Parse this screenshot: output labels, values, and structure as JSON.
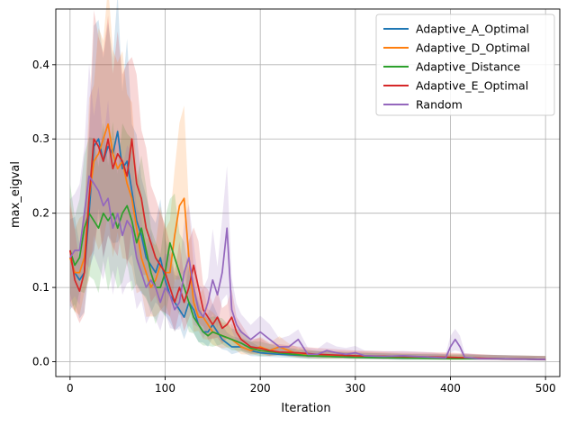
{
  "chart_data": {
    "type": "line",
    "title": "",
    "xlabel": "Iteration",
    "ylabel": "max_eigval",
    "xlim": [
      -15,
      515
    ],
    "ylim": [
      -0.02,
      0.475
    ],
    "x_ticks": [
      0,
      100,
      200,
      300,
      400,
      500
    ],
    "y_ticks": [
      0.0,
      0.1,
      0.2,
      0.3,
      0.4
    ],
    "x_tick_labels": [
      "0",
      "100",
      "200",
      "300",
      "400",
      "500"
    ],
    "y_tick_labels": [
      "0.0",
      "0.1",
      "0.2",
      "0.3",
      "0.4"
    ],
    "grid": true,
    "legend_position": "top-right",
    "series": [
      {
        "name": "Adaptive_A_Optimal",
        "color": "#1f77b4",
        "points": [
          [
            0,
            0.14
          ],
          [
            5,
            0.12
          ],
          [
            10,
            0.11
          ],
          [
            15,
            0.12
          ],
          [
            20,
            0.2
          ],
          [
            25,
            0.29
          ],
          [
            30,
            0.3
          ],
          [
            35,
            0.27
          ],
          [
            40,
            0.29
          ],
          [
            45,
            0.28
          ],
          [
            50,
            0.31
          ],
          [
            55,
            0.26
          ],
          [
            60,
            0.27
          ],
          [
            65,
            0.23
          ],
          [
            70,
            0.19
          ],
          [
            75,
            0.17
          ],
          [
            80,
            0.14
          ],
          [
            85,
            0.13
          ],
          [
            90,
            0.12
          ],
          [
            95,
            0.14
          ],
          [
            100,
            0.11
          ],
          [
            105,
            0.09
          ],
          [
            110,
            0.08
          ],
          [
            115,
            0.07
          ],
          [
            120,
            0.06
          ],
          [
            125,
            0.08
          ],
          [
            130,
            0.07
          ],
          [
            135,
            0.05
          ],
          [
            140,
            0.04
          ],
          [
            145,
            0.04
          ],
          [
            150,
            0.05
          ],
          [
            155,
            0.04
          ],
          [
            160,
            0.03
          ],
          [
            165,
            0.025
          ],
          [
            170,
            0.02
          ],
          [
            180,
            0.02
          ],
          [
            190,
            0.015
          ],
          [
            200,
            0.012
          ],
          [
            220,
            0.01
          ],
          [
            250,
            0.008
          ],
          [
            300,
            0.006
          ],
          [
            350,
            0.005
          ],
          [
            400,
            0.005
          ],
          [
            450,
            0.004
          ],
          [
            500,
            0.003
          ]
        ]
      },
      {
        "name": "Adaptive_D_Optimal",
        "color": "#ff7f0e",
        "points": [
          [
            0,
            0.14
          ],
          [
            5,
            0.12
          ],
          [
            10,
            0.12
          ],
          [
            15,
            0.14
          ],
          [
            20,
            0.22
          ],
          [
            25,
            0.27
          ],
          [
            30,
            0.28
          ],
          [
            35,
            0.3
          ],
          [
            40,
            0.32
          ],
          [
            45,
            0.28
          ],
          [
            50,
            0.26
          ],
          [
            55,
            0.27
          ],
          [
            60,
            0.24
          ],
          [
            65,
            0.22
          ],
          [
            70,
            0.18
          ],
          [
            75,
            0.14
          ],
          [
            80,
            0.12
          ],
          [
            85,
            0.1
          ],
          [
            90,
            0.11
          ],
          [
            95,
            0.13
          ],
          [
            100,
            0.12
          ],
          [
            105,
            0.12
          ],
          [
            110,
            0.17
          ],
          [
            115,
            0.21
          ],
          [
            120,
            0.22
          ],
          [
            125,
            0.14
          ],
          [
            130,
            0.08
          ],
          [
            135,
            0.06
          ],
          [
            140,
            0.06
          ],
          [
            145,
            0.05
          ],
          [
            150,
            0.04
          ],
          [
            160,
            0.035
          ],
          [
            170,
            0.03
          ],
          [
            180,
            0.02
          ],
          [
            190,
            0.015
          ],
          [
            200,
            0.02
          ],
          [
            210,
            0.015
          ],
          [
            220,
            0.02
          ],
          [
            230,
            0.015
          ],
          [
            240,
            0.01
          ],
          [
            260,
            0.008
          ],
          [
            300,
            0.007
          ],
          [
            350,
            0.006
          ],
          [
            400,
            0.005
          ],
          [
            450,
            0.004
          ],
          [
            500,
            0.003
          ]
        ]
      },
      {
        "name": "Adaptive_Distance",
        "color": "#2ca02c",
        "points": [
          [
            0,
            0.15
          ],
          [
            5,
            0.13
          ],
          [
            10,
            0.14
          ],
          [
            15,
            0.18
          ],
          [
            20,
            0.2
          ],
          [
            25,
            0.19
          ],
          [
            30,
            0.18
          ],
          [
            35,
            0.2
          ],
          [
            40,
            0.19
          ],
          [
            45,
            0.2
          ],
          [
            50,
            0.18
          ],
          [
            55,
            0.2
          ],
          [
            60,
            0.21
          ],
          [
            65,
            0.19
          ],
          [
            70,
            0.16
          ],
          [
            75,
            0.18
          ],
          [
            80,
            0.15
          ],
          [
            85,
            0.12
          ],
          [
            90,
            0.1
          ],
          [
            95,
            0.1
          ],
          [
            100,
            0.12
          ],
          [
            105,
            0.16
          ],
          [
            110,
            0.14
          ],
          [
            115,
            0.12
          ],
          [
            120,
            0.1
          ],
          [
            125,
            0.08
          ],
          [
            130,
            0.06
          ],
          [
            135,
            0.05
          ],
          [
            140,
            0.04
          ],
          [
            145,
            0.035
          ],
          [
            150,
            0.04
          ],
          [
            160,
            0.035
          ],
          [
            170,
            0.03
          ],
          [
            180,
            0.025
          ],
          [
            190,
            0.018
          ],
          [
            200,
            0.015
          ],
          [
            220,
            0.012
          ],
          [
            250,
            0.008
          ],
          [
            300,
            0.006
          ],
          [
            350,
            0.005
          ],
          [
            400,
            0.004
          ],
          [
            450,
            0.004
          ],
          [
            500,
            0.003
          ]
        ]
      },
      {
        "name": "Adaptive_E_Optimal",
        "color": "#d62728",
        "points": [
          [
            0,
            0.15
          ],
          [
            5,
            0.11
          ],
          [
            10,
            0.095
          ],
          [
            15,
            0.12
          ],
          [
            20,
            0.22
          ],
          [
            25,
            0.3
          ],
          [
            30,
            0.29
          ],
          [
            35,
            0.27
          ],
          [
            40,
            0.3
          ],
          [
            45,
            0.26
          ],
          [
            50,
            0.28
          ],
          [
            55,
            0.27
          ],
          [
            60,
            0.25
          ],
          [
            65,
            0.3
          ],
          [
            70,
            0.24
          ],
          [
            75,
            0.22
          ],
          [
            80,
            0.18
          ],
          [
            85,
            0.16
          ],
          [
            90,
            0.14
          ],
          [
            95,
            0.13
          ],
          [
            100,
            0.12
          ],
          [
            105,
            0.1
          ],
          [
            110,
            0.08
          ],
          [
            115,
            0.1
          ],
          [
            120,
            0.08
          ],
          [
            125,
            0.1
          ],
          [
            130,
            0.13
          ],
          [
            135,
            0.1
          ],
          [
            140,
            0.07
          ],
          [
            145,
            0.06
          ],
          [
            150,
            0.05
          ],
          [
            155,
            0.06
          ],
          [
            160,
            0.045
          ],
          [
            165,
            0.05
          ],
          [
            170,
            0.06
          ],
          [
            175,
            0.04
          ],
          [
            180,
            0.03
          ],
          [
            190,
            0.02
          ],
          [
            200,
            0.018
          ],
          [
            210,
            0.015
          ],
          [
            220,
            0.013
          ],
          [
            240,
            0.012
          ],
          [
            260,
            0.01
          ],
          [
            300,
            0.008
          ],
          [
            350,
            0.007
          ],
          [
            400,
            0.006
          ],
          [
            450,
            0.004
          ],
          [
            500,
            0.003
          ]
        ]
      },
      {
        "name": "Random",
        "color": "#9467bd",
        "points": [
          [
            0,
            0.14
          ],
          [
            5,
            0.15
          ],
          [
            10,
            0.15
          ],
          [
            15,
            0.2
          ],
          [
            20,
            0.25
          ],
          [
            25,
            0.24
          ],
          [
            30,
            0.23
          ],
          [
            35,
            0.21
          ],
          [
            40,
            0.22
          ],
          [
            45,
            0.18
          ],
          [
            50,
            0.2
          ],
          [
            55,
            0.17
          ],
          [
            60,
            0.19
          ],
          [
            65,
            0.18
          ],
          [
            70,
            0.14
          ],
          [
            75,
            0.12
          ],
          [
            80,
            0.1
          ],
          [
            85,
            0.11
          ],
          [
            90,
            0.1
          ],
          [
            95,
            0.08
          ],
          [
            100,
            0.1
          ],
          [
            105,
            0.09
          ],
          [
            110,
            0.07
          ],
          [
            115,
            0.08
          ],
          [
            120,
            0.12
          ],
          [
            125,
            0.14
          ],
          [
            130,
            0.1
          ],
          [
            135,
            0.07
          ],
          [
            140,
            0.06
          ],
          [
            145,
            0.08
          ],
          [
            150,
            0.11
          ],
          [
            155,
            0.09
          ],
          [
            160,
            0.12
          ],
          [
            165,
            0.18
          ],
          [
            170,
            0.07
          ],
          [
            175,
            0.05
          ],
          [
            180,
            0.04
          ],
          [
            190,
            0.03
          ],
          [
            200,
            0.04
          ],
          [
            210,
            0.03
          ],
          [
            220,
            0.02
          ],
          [
            230,
            0.02
          ],
          [
            240,
            0.03
          ],
          [
            250,
            0.01
          ],
          [
            260,
            0.01
          ],
          [
            270,
            0.015
          ],
          [
            280,
            0.012
          ],
          [
            290,
            0.01
          ],
          [
            300,
            0.012
          ],
          [
            310,
            0.008
          ],
          [
            330,
            0.007
          ],
          [
            350,
            0.008
          ],
          [
            380,
            0.006
          ],
          [
            395,
            0.005
          ],
          [
            400,
            0.02
          ],
          [
            405,
            0.03
          ],
          [
            410,
            0.02
          ],
          [
            415,
            0.006
          ],
          [
            430,
            0.004
          ],
          [
            450,
            0.004
          ],
          [
            500,
            0.003
          ]
        ]
      }
    ]
  }
}
